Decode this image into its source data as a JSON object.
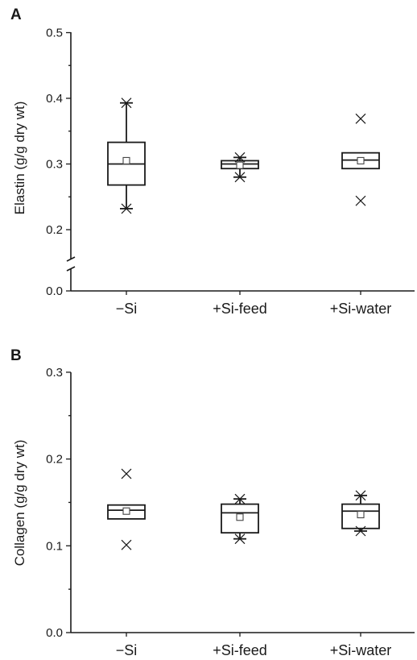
{
  "chart_data": [
    {
      "type": "box",
      "panel": "A",
      "ylabel": "Elastin (g/g dry wt)",
      "categories": [
        "−Si",
        "+Si-feed",
        "+Si-water"
      ],
      "ylim": [
        0.0,
        0.5
      ],
      "yticks": [
        0.0,
        0.2,
        0.3,
        0.4,
        0.5
      ],
      "ytick_labels": [
        "0.0",
        "0.2",
        "0.3",
        "0.4",
        "0.5"
      ],
      "axis_break": [
        0.0,
        0.2
      ],
      "boxes": [
        {
          "category": "−Si",
          "q1": 0.268,
          "median": 0.3,
          "q3": 0.333,
          "mean": 0.305,
          "whisker_low": 0.232,
          "whisker_high": 0.393,
          "extremes": [
            0.232,
            0.393
          ]
        },
        {
          "category": "+Si-feed",
          "q1": 0.293,
          "median": 0.3,
          "q3": 0.305,
          "mean": 0.298,
          "whisker_low": 0.28,
          "whisker_high": 0.31,
          "extremes": [
            0.28,
            0.31
          ]
        },
        {
          "category": "+Si-water",
          "q1": 0.293,
          "median": 0.306,
          "q3": 0.317,
          "mean": 0.305,
          "whisker_low": null,
          "whisker_high": null,
          "extremes": [
            0.244,
            0.369
          ]
        }
      ]
    },
    {
      "type": "box",
      "panel": "B",
      "ylabel": "Collagen (g/g dry wt)",
      "categories": [
        "−Si",
        "+Si-feed",
        "+Si-water"
      ],
      "ylim": [
        0.0,
        0.3
      ],
      "yticks": [
        0.0,
        0.1,
        0.2,
        0.3
      ],
      "ytick_labels": [
        "0.0",
        "0.1",
        "0.2",
        "0.3"
      ],
      "boxes": [
        {
          "category": "−Si",
          "q1": 0.131,
          "median": 0.141,
          "q3": 0.147,
          "mean": 0.14,
          "whisker_low": null,
          "whisker_high": null,
          "extremes": [
            0.101,
            0.183
          ]
        },
        {
          "category": "+Si-feed",
          "q1": 0.115,
          "median": 0.138,
          "q3": 0.148,
          "mean": 0.133,
          "whisker_low": 0.108,
          "whisker_high": 0.154,
          "extremes": [
            0.108,
            0.154
          ]
        },
        {
          "category": "+Si-water",
          "q1": 0.12,
          "median": 0.14,
          "q3": 0.148,
          "mean": 0.136,
          "whisker_low": 0.117,
          "whisker_high": 0.158,
          "extremes": [
            0.117,
            0.158
          ]
        }
      ]
    }
  ]
}
